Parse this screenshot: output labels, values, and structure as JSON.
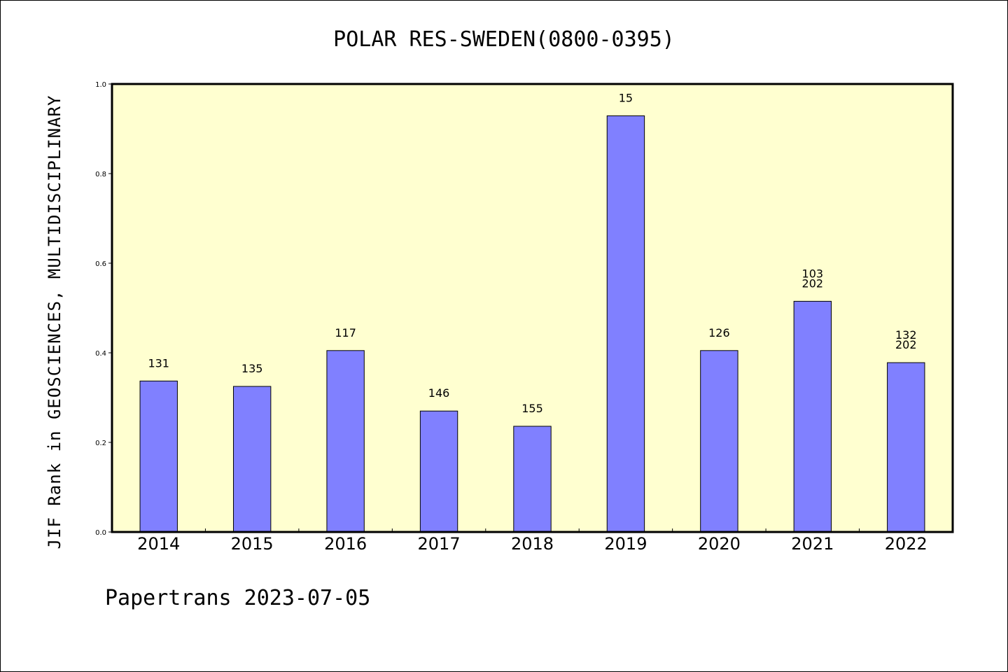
{
  "chart_data": {
    "type": "bar",
    "title": "POLAR RES-SWEDEN(0800-0395)",
    "ylabel": "JIF Rank in GEOSCIENCES, MULTIDISCIPLINARY",
    "xlabel": "",
    "ylim": [
      0,
      1.0
    ],
    "yticks": [
      0.0,
      0.2,
      0.4,
      0.6,
      0.8,
      1.0
    ],
    "ytick_labels": [
      "0.0",
      "0.2",
      "0.4",
      "0.6",
      "0.8",
      "1.0"
    ],
    "categories": [
      "2014",
      "2015",
      "2016",
      "2017",
      "2018",
      "2019",
      "2020",
      "2021",
      "2022"
    ],
    "values": [
      0.337,
      0.325,
      0.405,
      0.27,
      0.236,
      0.929,
      0.405,
      0.515,
      0.378
    ],
    "data_labels": [
      [
        "131"
      ],
      [
        "135"
      ],
      [
        "117"
      ],
      [
        "146"
      ],
      [
        "155"
      ],
      [
        "15"
      ],
      [
        "126"
      ],
      [
        "103",
        "202"
      ],
      [
        "132",
        "202"
      ]
    ],
    "grid": false,
    "legend": "none",
    "colors": {
      "bar_fill": "#8080ff",
      "bar_stroke": "#000000",
      "plot_background": "#ffffd0",
      "axis": "#000000"
    }
  },
  "footer": "Papertrans 2023-07-05"
}
